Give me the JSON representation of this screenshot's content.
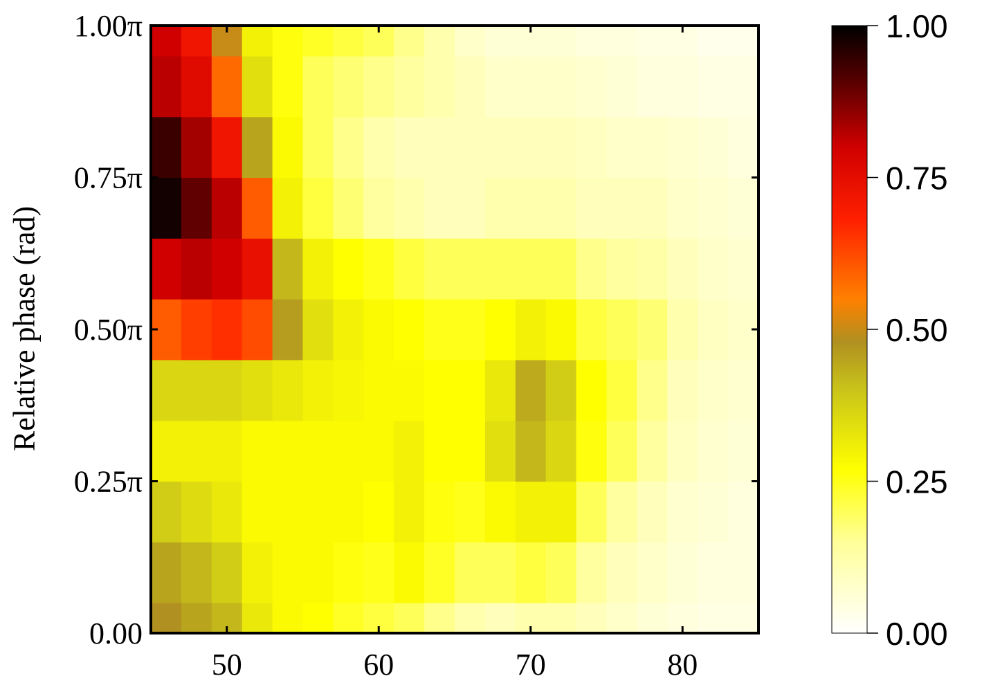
{
  "chart_data": {
    "type": "heatmap",
    "title": "",
    "xlabel": "",
    "ylabel": "Relative phase (rad)",
    "xlim": [
      45,
      85
    ],
    "ylim": [
      0,
      1
    ],
    "x_ticks": [
      {
        "value": 50,
        "label": "50"
      },
      {
        "value": 60,
        "label": "60"
      },
      {
        "value": 70,
        "label": "70"
      },
      {
        "value": 80,
        "label": "80"
      }
    ],
    "y_ticks": [
      {
        "value": 0.0,
        "label": "0.00"
      },
      {
        "value": 0.25,
        "label": "0.25π"
      },
      {
        "value": 0.5,
        "label": "0.50π"
      },
      {
        "value": 0.75,
        "label": "0.75π"
      },
      {
        "value": 1.0,
        "label": "1.00π"
      }
    ],
    "colorbar": {
      "range": [
        0,
        1
      ],
      "ticks": [
        {
          "value": 0.0,
          "label": "0.00"
        },
        {
          "value": 0.25,
          "label": "0.25"
        },
        {
          "value": 0.5,
          "label": "0.50"
        },
        {
          "value": 0.75,
          "label": "0.75"
        },
        {
          "value": 1.0,
          "label": "1.00"
        }
      ],
      "colormap": [
        {
          "value": 0.0,
          "color": "#ffffff"
        },
        {
          "value": 0.15,
          "color": "#ffff99"
        },
        {
          "value": 0.27,
          "color": "#ffff00"
        },
        {
          "value": 0.4,
          "color": "#c9c41a"
        },
        {
          "value": 0.48,
          "color": "#b09020"
        },
        {
          "value": 0.55,
          "color": "#ff8000"
        },
        {
          "value": 0.68,
          "color": "#ff2000"
        },
        {
          "value": 0.8,
          "color": "#d00000"
        },
        {
          "value": 0.9,
          "color": "#600000"
        },
        {
          "value": 1.0,
          "color": "#000000"
        }
      ]
    },
    "x": [
      46,
      48,
      50,
      52,
      54,
      56,
      58,
      60,
      62,
      64,
      66,
      68,
      70,
      72,
      74,
      76,
      78,
      80,
      82,
      84
    ],
    "y": [
      0.0,
      0.1,
      0.2,
      0.3,
      0.4,
      0.5,
      0.6,
      0.7,
      0.8,
      0.9,
      1.0
    ],
    "z": [
      [
        0.48,
        0.45,
        0.42,
        0.32,
        0.28,
        0.27,
        0.24,
        0.22,
        0.2,
        0.16,
        0.12,
        0.1,
        0.12,
        0.12,
        0.1,
        0.08,
        0.06,
        0.05,
        0.04,
        0.04
      ],
      [
        0.45,
        0.42,
        0.38,
        0.3,
        0.28,
        0.28,
        0.26,
        0.25,
        0.28,
        0.24,
        0.2,
        0.2,
        0.22,
        0.2,
        0.14,
        0.1,
        0.08,
        0.06,
        0.05,
        0.05
      ],
      [
        0.38,
        0.35,
        0.32,
        0.28,
        0.28,
        0.28,
        0.28,
        0.27,
        0.3,
        0.26,
        0.25,
        0.28,
        0.3,
        0.3,
        0.2,
        0.14,
        0.1,
        0.07,
        0.06,
        0.05
      ],
      [
        0.3,
        0.3,
        0.3,
        0.28,
        0.28,
        0.28,
        0.28,
        0.28,
        0.3,
        0.27,
        0.27,
        0.34,
        0.42,
        0.36,
        0.26,
        0.2,
        0.14,
        0.09,
        0.07,
        0.06
      ],
      [
        0.36,
        0.36,
        0.36,
        0.34,
        0.32,
        0.3,
        0.29,
        0.28,
        0.28,
        0.27,
        0.27,
        0.32,
        0.44,
        0.38,
        0.27,
        0.22,
        0.16,
        0.1,
        0.08,
        0.07
      ],
      [
        0.6,
        0.64,
        0.66,
        0.62,
        0.46,
        0.34,
        0.3,
        0.28,
        0.27,
        0.25,
        0.25,
        0.27,
        0.3,
        0.28,
        0.22,
        0.2,
        0.18,
        0.12,
        0.09,
        0.08
      ],
      [
        0.8,
        0.82,
        0.8,
        0.74,
        0.42,
        0.3,
        0.27,
        0.25,
        0.22,
        0.2,
        0.2,
        0.2,
        0.2,
        0.2,
        0.16,
        0.14,
        0.13,
        0.1,
        0.08,
        0.07
      ],
      [
        0.98,
        0.9,
        0.82,
        0.6,
        0.3,
        0.22,
        0.18,
        0.14,
        0.12,
        0.1,
        0.1,
        0.12,
        0.12,
        0.12,
        0.1,
        0.1,
        0.1,
        0.08,
        0.07,
        0.06
      ],
      [
        0.94,
        0.84,
        0.72,
        0.45,
        0.28,
        0.2,
        0.16,
        0.12,
        0.1,
        0.1,
        0.1,
        0.1,
        0.1,
        0.1,
        0.09,
        0.08,
        0.08,
        0.07,
        0.06,
        0.05
      ],
      [
        0.82,
        0.76,
        0.58,
        0.34,
        0.26,
        0.2,
        0.18,
        0.16,
        0.14,
        0.12,
        0.1,
        0.08,
        0.08,
        0.08,
        0.07,
        0.06,
        0.05,
        0.05,
        0.04,
        0.04
      ],
      [
        0.8,
        0.72,
        0.5,
        0.3,
        0.26,
        0.24,
        0.22,
        0.2,
        0.16,
        0.12,
        0.08,
        0.06,
        0.06,
        0.06,
        0.05,
        0.05,
        0.04,
        0.04,
        0.03,
        0.03
      ]
    ]
  }
}
